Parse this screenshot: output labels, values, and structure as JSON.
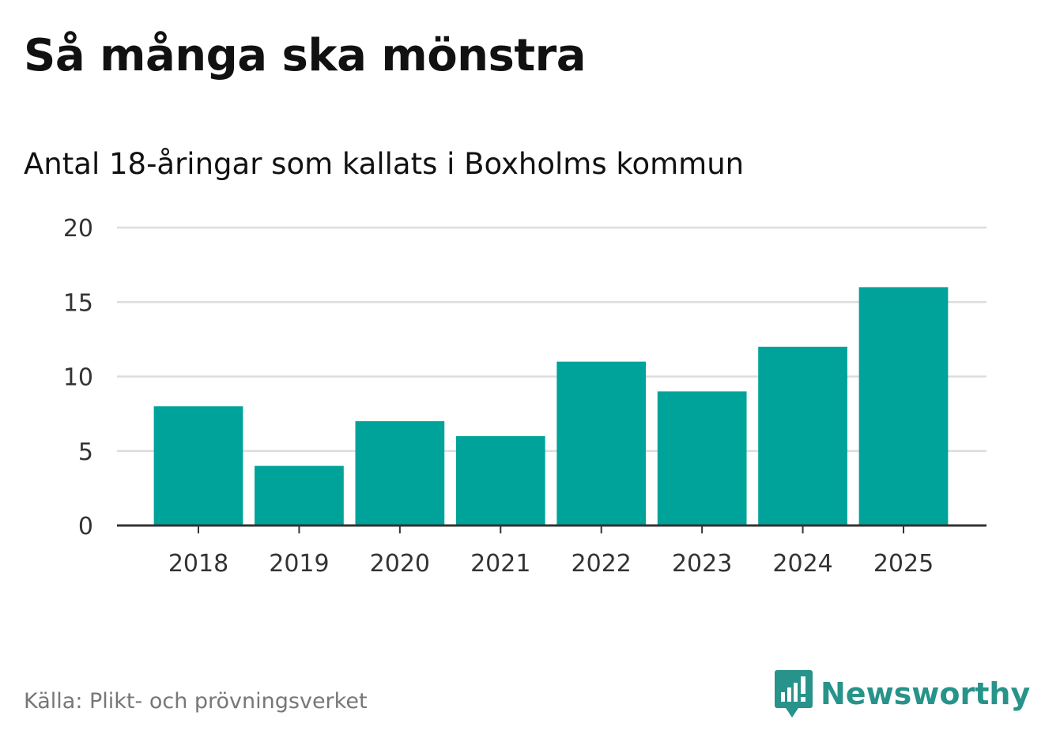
{
  "title": "Så många ska mönstra",
  "subtitle": "Antal 18-åringar som kallats i Boxholms kommun",
  "source": "Källa: Plikt- och prövningsverket",
  "brand": {
    "name": "Newsworthy",
    "icon": "newsworthy-logo-icon",
    "color": "#27938a"
  },
  "colors": {
    "bar": "#00a39a",
    "grid": "#dddddd",
    "axis": "#333333"
  },
  "chart_data": {
    "type": "bar",
    "categories": [
      "2018",
      "2019",
      "2020",
      "2021",
      "2022",
      "2023",
      "2024",
      "2025"
    ],
    "values": [
      8,
      4,
      7,
      6,
      11,
      9,
      12,
      16
    ],
    "ylim": [
      0,
      20
    ],
    "yticks": [
      0,
      5,
      10,
      15,
      20
    ],
    "grid": true,
    "xlabel": "",
    "ylabel": ""
  }
}
